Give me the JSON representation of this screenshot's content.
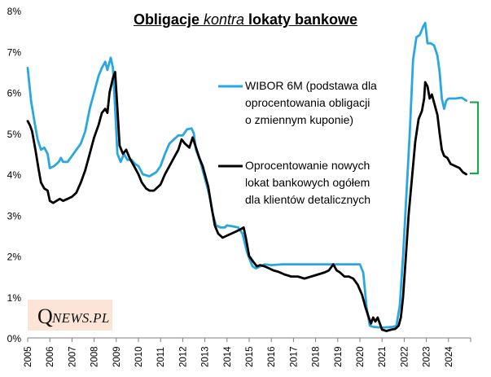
{
  "chart_data": {
    "type": "line",
    "title_parts": [
      "Obligacje ",
      "kontra",
      " lokaty bankowe"
    ],
    "title": "Obligacje kontra lokaty bankowe",
    "xlabel": "",
    "ylabel": "",
    "xlim": [
      2005,
      2025
    ],
    "ylim": [
      0,
      8
    ],
    "y_ticks": [
      0,
      1,
      2,
      3,
      4,
      5,
      6,
      7,
      8
    ],
    "y_tick_labels": [
      "0%",
      "1%",
      "2%",
      "3%",
      "4%",
      "5%",
      "6%",
      "7%",
      "8%"
    ],
    "x_tick_labels": [
      "2005",
      "2006",
      "2007",
      "2008",
      "2009",
      "2010",
      "2011",
      "2012",
      "2013",
      "2014",
      "2015",
      "2016",
      "2017",
      "2018",
      "2019",
      "2020",
      "2021",
      "2022",
      "2023",
      "2024"
    ],
    "grid": false,
    "series": [
      {
        "name": "WIBOR 6M (podstawa dla oprocentowania obligacji o zmiennym kuponie)",
        "color": "#29a8e0",
        "points": [
          [
            2005.0,
            6.6
          ],
          [
            2005.15,
            5.8
          ],
          [
            2005.3,
            5.3
          ],
          [
            2005.45,
            4.85
          ],
          [
            2005.6,
            4.6
          ],
          [
            2005.75,
            4.65
          ],
          [
            2005.9,
            4.5
          ],
          [
            2006.0,
            4.15
          ],
          [
            2006.2,
            4.2
          ],
          [
            2006.4,
            4.3
          ],
          [
            2006.5,
            4.4
          ],
          [
            2006.6,
            4.3
          ],
          [
            2006.8,
            4.3
          ],
          [
            2007.0,
            4.45
          ],
          [
            2007.2,
            4.6
          ],
          [
            2007.4,
            4.75
          ],
          [
            2007.6,
            5.05
          ],
          [
            2007.8,
            5.6
          ],
          [
            2008.0,
            6.0
          ],
          [
            2008.2,
            6.4
          ],
          [
            2008.35,
            6.6
          ],
          [
            2008.5,
            6.75
          ],
          [
            2008.6,
            6.55
          ],
          [
            2008.75,
            6.85
          ],
          [
            2008.85,
            6.6
          ],
          [
            2008.95,
            5.6
          ],
          [
            2009.05,
            4.5
          ],
          [
            2009.2,
            4.3
          ],
          [
            2009.35,
            4.5
          ],
          [
            2009.5,
            4.35
          ],
          [
            2009.7,
            4.35
          ],
          [
            2009.85,
            4.25
          ],
          [
            2010.0,
            4.2
          ],
          [
            2010.2,
            4.0
          ],
          [
            2010.5,
            3.95
          ],
          [
            2010.8,
            4.05
          ],
          [
            2011.0,
            4.2
          ],
          [
            2011.2,
            4.5
          ],
          [
            2011.4,
            4.75
          ],
          [
            2011.6,
            4.85
          ],
          [
            2011.8,
            4.95
          ],
          [
            2012.0,
            4.95
          ],
          [
            2012.2,
            5.1
          ],
          [
            2012.4,
            5.12
          ],
          [
            2012.5,
            5.0
          ],
          [
            2012.6,
            4.6
          ],
          [
            2012.8,
            4.3
          ],
          [
            2013.0,
            3.9
          ],
          [
            2013.2,
            3.5
          ],
          [
            2013.35,
            3.05
          ],
          [
            2013.5,
            2.75
          ],
          [
            2013.7,
            2.7
          ],
          [
            2013.9,
            2.7
          ],
          [
            2014.0,
            2.75
          ],
          [
            2014.3,
            2.72
          ],
          [
            2014.5,
            2.7
          ],
          [
            2014.7,
            2.55
          ],
          [
            2014.9,
            2.1
          ],
          [
            2015.0,
            1.95
          ],
          [
            2015.15,
            1.75
          ],
          [
            2015.3,
            1.7
          ],
          [
            2015.5,
            1.75
          ],
          [
            2015.7,
            1.8
          ],
          [
            2016.0,
            1.78
          ],
          [
            2016.5,
            1.8
          ],
          [
            2017.0,
            1.8
          ],
          [
            2017.5,
            1.8
          ],
          [
            2018.0,
            1.8
          ],
          [
            2018.5,
            1.8
          ],
          [
            2019.0,
            1.8
          ],
          [
            2019.5,
            1.8
          ],
          [
            2020.0,
            1.8
          ],
          [
            2020.15,
            1.6
          ],
          [
            2020.3,
            0.75
          ],
          [
            2020.45,
            0.3
          ],
          [
            2020.6,
            0.27
          ],
          [
            2021.0,
            0.25
          ],
          [
            2021.5,
            0.27
          ],
          [
            2021.65,
            0.3
          ],
          [
            2021.8,
            0.8
          ],
          [
            2021.95,
            2.0
          ],
          [
            2022.1,
            3.5
          ],
          [
            2022.25,
            5.0
          ],
          [
            2022.4,
            6.8
          ],
          [
            2022.55,
            7.35
          ],
          [
            2022.7,
            7.4
          ],
          [
            2022.85,
            7.6
          ],
          [
            2022.95,
            7.7
          ],
          [
            2023.05,
            7.2
          ],
          [
            2023.2,
            7.2
          ],
          [
            2023.35,
            7.15
          ],
          [
            2023.5,
            6.9
          ],
          [
            2023.6,
            6.5
          ],
          [
            2023.7,
            5.85
          ],
          [
            2023.8,
            5.6
          ],
          [
            2023.9,
            5.8
          ],
          [
            2024.0,
            5.85
          ],
          [
            2024.3,
            5.85
          ],
          [
            2024.6,
            5.87
          ],
          [
            2024.8,
            5.8
          ]
        ]
      },
      {
        "name": "Oprocentowanie nowych lokat bankowych ogółem dla klientów detalicznych",
        "color": "#000000",
        "points": [
          [
            2005.0,
            5.3
          ],
          [
            2005.1,
            5.2
          ],
          [
            2005.2,
            5.05
          ],
          [
            2005.35,
            4.6
          ],
          [
            2005.5,
            4.1
          ],
          [
            2005.6,
            3.8
          ],
          [
            2005.75,
            3.65
          ],
          [
            2005.9,
            3.6
          ],
          [
            2006.0,
            3.35
          ],
          [
            2006.15,
            3.3
          ],
          [
            2006.3,
            3.35
          ],
          [
            2006.45,
            3.4
          ],
          [
            2006.6,
            3.35
          ],
          [
            2006.8,
            3.4
          ],
          [
            2007.0,
            3.45
          ],
          [
            2007.2,
            3.55
          ],
          [
            2007.4,
            3.8
          ],
          [
            2007.6,
            4.1
          ],
          [
            2007.8,
            4.5
          ],
          [
            2008.0,
            4.9
          ],
          [
            2008.2,
            5.2
          ],
          [
            2008.35,
            5.5
          ],
          [
            2008.5,
            5.6
          ],
          [
            2008.6,
            5.5
          ],
          [
            2008.7,
            6.0
          ],
          [
            2008.85,
            6.35
          ],
          [
            2008.95,
            6.5
          ],
          [
            2009.05,
            5.6
          ],
          [
            2009.15,
            4.7
          ],
          [
            2009.3,
            4.5
          ],
          [
            2009.45,
            4.6
          ],
          [
            2009.6,
            4.4
          ],
          [
            2009.8,
            4.2
          ],
          [
            2010.0,
            4.0
          ],
          [
            2010.15,
            3.8
          ],
          [
            2010.35,
            3.65
          ],
          [
            2010.5,
            3.6
          ],
          [
            2010.7,
            3.6
          ],
          [
            2010.9,
            3.7
          ],
          [
            2011.0,
            3.75
          ],
          [
            2011.2,
            4.0
          ],
          [
            2011.4,
            4.2
          ],
          [
            2011.6,
            4.4
          ],
          [
            2011.8,
            4.6
          ],
          [
            2011.95,
            4.85
          ],
          [
            2012.1,
            4.75
          ],
          [
            2012.3,
            4.65
          ],
          [
            2012.45,
            4.9
          ],
          [
            2012.6,
            4.65
          ],
          [
            2012.75,
            4.4
          ],
          [
            2012.9,
            4.2
          ],
          [
            2013.0,
            4.0
          ],
          [
            2013.15,
            3.7
          ],
          [
            2013.3,
            3.2
          ],
          [
            2013.45,
            2.75
          ],
          [
            2013.6,
            2.55
          ],
          [
            2013.8,
            2.45
          ],
          [
            2014.0,
            2.5
          ],
          [
            2014.2,
            2.55
          ],
          [
            2014.4,
            2.6
          ],
          [
            2014.6,
            2.65
          ],
          [
            2014.75,
            2.7
          ],
          [
            2014.85,
            2.45
          ],
          [
            2015.0,
            2.0
          ],
          [
            2015.2,
            1.85
          ],
          [
            2015.35,
            1.75
          ],
          [
            2015.5,
            1.78
          ],
          [
            2015.7,
            1.75
          ],
          [
            2015.9,
            1.7
          ],
          [
            2016.1,
            1.65
          ],
          [
            2016.3,
            1.62
          ],
          [
            2016.6,
            1.55
          ],
          [
            2016.9,
            1.5
          ],
          [
            2017.2,
            1.5
          ],
          [
            2017.5,
            1.45
          ],
          [
            2017.8,
            1.5
          ],
          [
            2018.1,
            1.55
          ],
          [
            2018.4,
            1.6
          ],
          [
            2018.6,
            1.65
          ],
          [
            2018.8,
            1.8
          ],
          [
            2018.95,
            1.65
          ],
          [
            2019.1,
            1.6
          ],
          [
            2019.3,
            1.5
          ],
          [
            2019.5,
            1.5
          ],
          [
            2019.7,
            1.45
          ],
          [
            2019.9,
            1.3
          ],
          [
            2020.1,
            1.05
          ],
          [
            2020.25,
            0.75
          ],
          [
            2020.4,
            0.5
          ],
          [
            2020.5,
            0.35
          ],
          [
            2020.6,
            0.5
          ],
          [
            2020.7,
            0.4
          ],
          [
            2020.8,
            0.5
          ],
          [
            2020.9,
            0.35
          ],
          [
            2021.0,
            0.2
          ],
          [
            2021.2,
            0.17
          ],
          [
            2021.4,
            0.2
          ],
          [
            2021.6,
            0.22
          ],
          [
            2021.75,
            0.3
          ],
          [
            2021.85,
            0.5
          ],
          [
            2021.95,
            1.0
          ],
          [
            2022.05,
            1.8
          ],
          [
            2022.2,
            3.0
          ],
          [
            2022.35,
            3.9
          ],
          [
            2022.5,
            4.8
          ],
          [
            2022.65,
            5.35
          ],
          [
            2022.8,
            5.55
          ],
          [
            2022.9,
            5.85
          ],
          [
            2022.95,
            6.25
          ],
          [
            2023.05,
            6.15
          ],
          [
            2023.15,
            5.85
          ],
          [
            2023.25,
            5.95
          ],
          [
            2023.35,
            5.75
          ],
          [
            2023.5,
            5.45
          ],
          [
            2023.6,
            5.0
          ],
          [
            2023.7,
            4.6
          ],
          [
            2023.8,
            4.45
          ],
          [
            2023.95,
            4.4
          ],
          [
            2024.1,
            4.25
          ],
          [
            2024.3,
            4.2
          ],
          [
            2024.5,
            4.15
          ],
          [
            2024.65,
            4.05
          ],
          [
            2024.8,
            4.0
          ]
        ]
      }
    ],
    "legend": {
      "placement": "right",
      "entries": [
        {
          "lines": [
            "WIBOR 6M (podstawa dla",
            "oprocentowania obligacji",
            "o zmiennym kuponie)"
          ],
          "color": "#29a8e0"
        },
        {
          "lines": [
            "Oprocentowanie nowych",
            "lokat bankowych ogółem",
            "dla klientów detalicznych"
          ],
          "color": "#000000"
        }
      ]
    },
    "annotations": [
      {
        "type": "spread-bracket",
        "from": 5.8,
        "to": 4.0,
        "color": "#1aa64a"
      }
    ]
  },
  "logo": {
    "q": "Q",
    "rest": "NEWS.PL"
  }
}
